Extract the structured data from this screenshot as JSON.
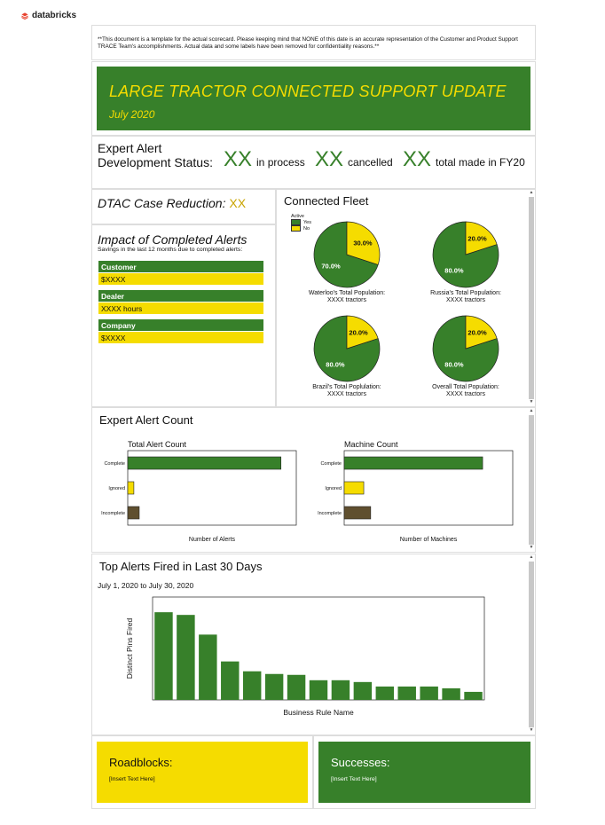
{
  "brand": {
    "logo_text": "databricks",
    "logo_color": "#e8422e"
  },
  "disclaimer": "**This document is a template for the actual scorecard. Please keeping mind that NONE of this date is an accurate representation of the Customer and Product Support TRACE Team's accomplishments. Actual data and some labels have been removed for confidentiality reasons.**",
  "banner": {
    "title": "LARGE TRACTOR CONNECTED SUPPORT UPDATE",
    "subtitle": "July 2020"
  },
  "status": {
    "label_line1": "Expert Alert",
    "label_line2": "Development Status:",
    "stats": [
      {
        "value": "XX",
        "label": "in process"
      },
      {
        "value": "XX",
        "label": "cancelled"
      },
      {
        "value": "XX",
        "label": "total made in FY20"
      }
    ]
  },
  "dtac": {
    "label": "DTAC Case Reduction:",
    "value": "XX"
  },
  "impact": {
    "title": "Impact of Completed Alerts",
    "subtitle": "Savings in the last 12 months due to completed alerts:",
    "items": [
      {
        "label": "Customer",
        "value": "$XXXX"
      },
      {
        "label": "Dealer",
        "value": "XXXX hours"
      },
      {
        "label": "Company",
        "value": "$XXXX"
      }
    ]
  },
  "colors": {
    "green": "#37802a",
    "yellow": "#f5dc00",
    "brown": "#5f4f2f"
  },
  "fleet": {
    "title": "Connected Fleet",
    "legend": {
      "title": "Active",
      "yes": "Yes",
      "no": "No"
    },
    "pies": [
      {
        "caption1": "Waterloo's Total Population:",
        "caption2": "XXXX tractors",
        "yes": 70.0,
        "no": 30.0,
        "yes_label": "70.0%",
        "no_label": "30.0%"
      },
      {
        "caption1": "Russia's Total Population:",
        "caption2": "XXXX tractors",
        "yes": 80.0,
        "no": 20.0,
        "yes_label": "80.0%",
        "no_label": "20.0%"
      },
      {
        "caption1": "Brazil's Total Poplulation:",
        "caption2": "XXXX tractors",
        "yes": 80.0,
        "no": 20.0,
        "yes_label": "80.0%",
        "no_label": "20.0%"
      },
      {
        "caption1": "Overall Total Population:",
        "caption2": "XXXX tractors",
        "yes": 80.0,
        "no": 20.0,
        "yes_label": "80.0%",
        "no_label": "20.0%"
      }
    ]
  },
  "alert_count": {
    "title": "Expert Alert Count",
    "charts": [
      {
        "title": "Total Alert Count",
        "xlabel": "Number of Alerts",
        "categories": [
          "Complete",
          "Ignored",
          "Incomplete"
        ],
        "values": [
          1000,
          40,
          75
        ],
        "xlim": [
          0,
          1100
        ]
      },
      {
        "title": "Machine Count",
        "xlabel": "Number of Machines",
        "categories": [
          "Complete",
          "Ignored",
          "Incomplete"
        ],
        "values": [
          460,
          65,
          88
        ],
        "xlim": [
          0,
          560
        ]
      }
    ]
  },
  "top_alerts": {
    "title": "Top Alerts Fired in Last 30 Days",
    "date_range": "July 1, 2020 to July 30, 2020"
  },
  "chart_data": [
    {
      "type": "pie",
      "title": "",
      "categories": [
        "Yes",
        "No"
      ],
      "values": [
        70.0,
        30.0
      ]
    },
    {
      "type": "pie",
      "title": "",
      "categories": [
        "Yes",
        "No"
      ],
      "values": [
        80.0,
        20.0
      ]
    },
    {
      "type": "pie",
      "title": "",
      "categories": [
        "Yes",
        "No"
      ],
      "values": [
        80.0,
        20.0
      ]
    },
    {
      "type": "pie",
      "title": "",
      "categories": [
        "Yes",
        "No"
      ],
      "values": [
        80.0,
        20.0
      ]
    },
    {
      "type": "bar",
      "title": "Total Alert Count",
      "xlabel": "Number of Alerts",
      "categories": [
        "Complete",
        "Ignored",
        "Incomplete"
      ],
      "values": [
        1000,
        40,
        75
      ],
      "orientation": "horizontal"
    },
    {
      "type": "bar",
      "title": "Machine Count",
      "xlabel": "Number of Machines",
      "categories": [
        "Complete",
        "Ignored",
        "Incomplete"
      ],
      "values": [
        460,
        65,
        88
      ],
      "orientation": "horizontal"
    },
    {
      "type": "bar",
      "title": "",
      "xlabel": "Business Rule Name",
      "ylabel": "Distinct Pins Fired",
      "values": [
        98,
        95,
        73,
        43,
        32,
        29,
        28,
        22,
        22,
        20,
        15,
        15,
        15,
        13,
        9
      ],
      "ylim": [
        0,
        115
      ],
      "grid": false
    }
  ],
  "roadblocks": {
    "title": "Roadblocks:",
    "text": "[Insert Text Here]"
  },
  "successes": {
    "title": "Successes:",
    "text": "[Insert Text Here]"
  }
}
